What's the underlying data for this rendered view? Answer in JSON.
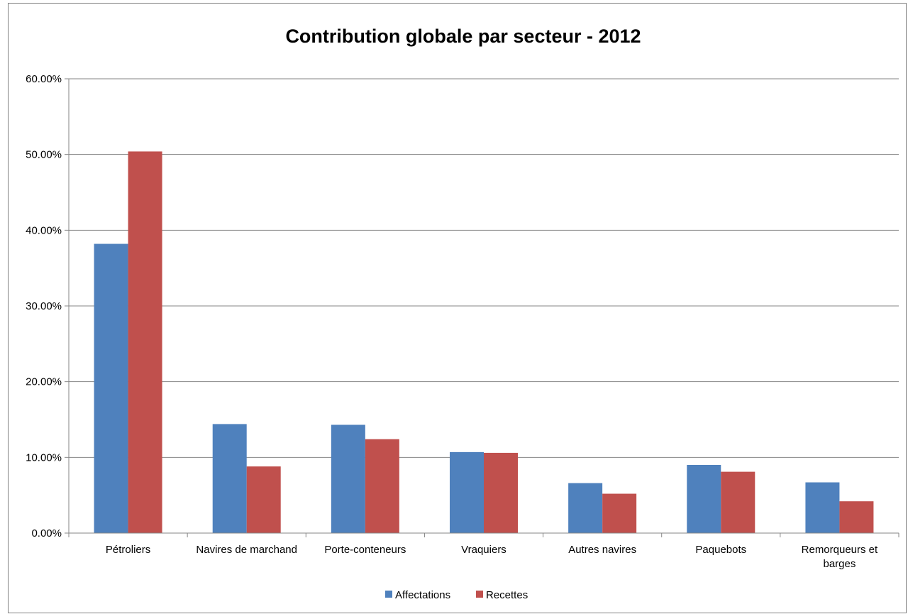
{
  "chart_data": {
    "type": "bar",
    "title": "Contribution globale par secteur - 2012",
    "categories": [
      [
        "Pétroliers"
      ],
      [
        "Navires de marchand"
      ],
      [
        "Porte-conteneurs"
      ],
      [
        "Vraquiers"
      ],
      [
        "Autres navires"
      ],
      [
        "Paquebots"
      ],
      [
        "Remorqueurs et",
        "barges"
      ]
    ],
    "series": [
      {
        "name": "Affectations",
        "color": "#4f81bd",
        "values": [
          38.2,
          14.4,
          14.3,
          10.7,
          6.6,
          9.0,
          6.7
        ]
      },
      {
        "name": "Recettes",
        "color": "#c0504d",
        "values": [
          50.4,
          8.8,
          12.4,
          10.6,
          5.2,
          8.1,
          4.2
        ]
      }
    ],
    "ylim": [
      0,
      60
    ],
    "yticks": [
      0,
      10,
      20,
      30,
      40,
      50,
      60
    ],
    "ytick_labels": [
      "0.00%",
      "10.00%",
      "20.00%",
      "30.00%",
      "40.00%",
      "50.00%",
      "60.00%"
    ],
    "grid": true,
    "legend_position": "bottom"
  }
}
